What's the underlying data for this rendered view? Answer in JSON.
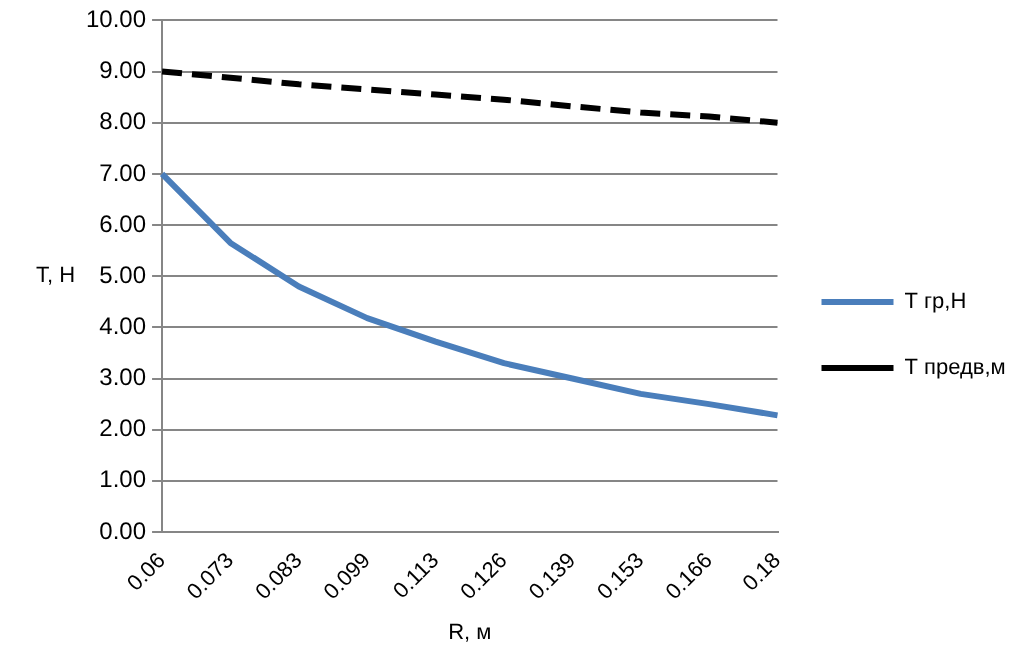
{
  "chart_data": {
    "type": "line",
    "xlabel": "R, м",
    "ylabel": "T, Н",
    "categories": [
      "0.06",
      "0.073",
      "0.083",
      "0.099",
      "0.113",
      "0.126",
      "0.139",
      "0.153",
      "0.166",
      "0.18"
    ],
    "series": [
      {
        "name": "Т гр,Н",
        "color": "#4a7ebb",
        "line_style": "solid",
        "values": [
          7.0,
          5.65,
          4.8,
          4.18,
          3.72,
          3.3,
          3.0,
          2.7,
          2.5,
          2.28
        ]
      },
      {
        "name": "Т предв,м",
        "color": "#000000",
        "line_style": "dashed",
        "values": [
          9.0,
          8.88,
          8.75,
          8.65,
          8.55,
          8.45,
          8.32,
          8.2,
          8.12,
          8.0
        ]
      }
    ],
    "ylim": [
      0,
      10
    ],
    "yticks": [
      {
        "value": 0,
        "label": "0.00"
      },
      {
        "value": 1,
        "label": "1.00"
      },
      {
        "value": 2,
        "label": "2.00"
      },
      {
        "value": 3,
        "label": "3.00"
      },
      {
        "value": 4,
        "label": "4.00"
      },
      {
        "value": 5,
        "label": "5.00"
      },
      {
        "value": 6,
        "label": "6.00"
      },
      {
        "value": 7,
        "label": "7.00"
      },
      {
        "value": 8,
        "label": "8.00"
      },
      {
        "value": 9,
        "label": "9.00"
      },
      {
        "value": 10,
        "label": "10.00"
      }
    ],
    "grid": "y",
    "legend": "right",
    "marker": "none"
  }
}
